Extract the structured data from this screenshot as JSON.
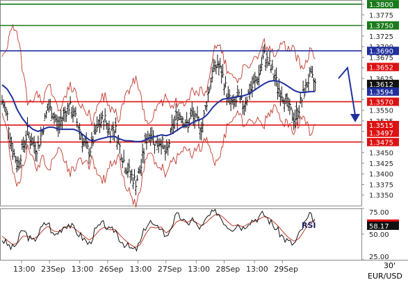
{
  "chart_data": {
    "type": "line",
    "symbol": "EUR/USD",
    "timeframe": "30'",
    "price_ylim": [
      1.3325,
      1.381
    ],
    "price_ticks": [
      "1.3350",
      "1.3375",
      "1.3400",
      "1.3425",
      "1.3450",
      "1.3475",
      "1.3500",
      "1.3525",
      "1.3550",
      "1.3575",
      "1.3600",
      "1.3625",
      "1.3650",
      "1.3675",
      "1.3700",
      "1.3725",
      "1.3750",
      "1.3775",
      "1.3800"
    ],
    "x_labels": [
      "13:00",
      "23Sep",
      "13:00",
      "26Sep",
      "13:00",
      "27Sep",
      "13:00",
      "28Sep",
      "13:00",
      "29Sep"
    ],
    "x_label_slots": [
      12,
      36,
      62,
      86,
      112,
      136,
      162,
      186,
      212,
      236
    ],
    "slot_count": 270,
    "levels": [
      {
        "value": 1.38,
        "label": "1.3800",
        "color": "#1a7a1a",
        "bg": "#1a7a1a"
      },
      {
        "value": 1.375,
        "label": "1.3750",
        "color": "#1a7a1a",
        "bg": "#1a7a1a"
      },
      {
        "value": 1.369,
        "label": "1.3690",
        "color": "#1f2f9e",
        "bg": "#1f2f9e"
      },
      {
        "value": 1.357,
        "label": "1.3570",
        "color": "#dd1111",
        "bg": "#dd1111"
      },
      {
        "value": 1.3515,
        "label": "1.3515",
        "color": "#dd1111",
        "bg": "#dd1111"
      },
      {
        "value": 1.3475,
        "label": "1.3475",
        "color": "#dd1111",
        "bg": "#dd1111"
      }
    ],
    "markers": [
      {
        "value": 1.3652,
        "label": "1.3652",
        "bg": "#dd1111"
      },
      {
        "value": 1.3612,
        "label": "1.3612",
        "bg": "#111111"
      },
      {
        "value": 1.3594,
        "label": "1.3594",
        "bg": "#1f2f9e"
      },
      {
        "value": 1.3497,
        "label": "1.3497",
        "bg": "#dd1111"
      }
    ],
    "price_series": [
      1.357,
      1.354,
      1.346,
      1.342,
      1.346,
      1.35,
      1.347,
      1.346,
      1.351,
      1.356,
      1.354,
      1.351,
      1.354,
      1.356,
      1.354,
      1.351,
      1.347,
      1.345,
      1.349,
      1.352,
      1.353,
      1.35,
      1.351,
      1.346,
      1.342,
      1.34,
      1.338,
      1.341,
      1.348,
      1.35,
      1.347,
      1.348,
      1.344,
      1.35,
      1.354,
      1.354,
      1.351,
      1.354,
      1.352,
      1.351,
      1.358,
      1.364,
      1.366,
      1.363,
      1.358,
      1.356,
      1.358,
      1.356,
      1.359,
      1.361,
      1.363,
      1.368,
      1.366,
      1.363,
      1.36,
      1.358,
      1.355,
      1.353,
      1.356,
      1.36,
      1.363,
      1.3612
    ],
    "ma_series": [
      1.361,
      1.36,
      1.358,
      1.355,
      1.353,
      1.3515,
      1.3505,
      1.35,
      1.3505,
      1.351,
      1.351,
      1.3505,
      1.3505,
      1.3505,
      1.3505,
      1.35,
      1.349,
      1.348,
      1.3478,
      1.3482,
      1.3485,
      1.3488,
      1.3488,
      1.3482,
      1.3478,
      1.3478,
      1.3476,
      1.3476,
      1.348,
      1.3486,
      1.3488,
      1.3492,
      1.349,
      1.3494,
      1.3502,
      1.351,
      1.3514,
      1.352,
      1.3526,
      1.353,
      1.354,
      1.3556,
      1.3568,
      1.3576,
      1.3578,
      1.358,
      1.3582,
      1.3584,
      1.3588,
      1.3596,
      1.3604,
      1.3612,
      1.3618,
      1.362,
      1.3618,
      1.3612,
      1.3604,
      1.3596,
      1.3592,
      1.3592,
      1.3594,
      1.3594
    ],
    "forecast": {
      "from": 1.365,
      "to": 1.3525
    },
    "rsi": {
      "label": "RSI",
      "ylim": [
        25,
        75
      ],
      "ticks": [
        "25.00",
        "50.00",
        "75.00"
      ],
      "values": [
        45,
        40,
        36,
        42,
        55,
        48,
        42,
        50,
        58,
        62,
        48,
        52,
        58,
        60,
        55,
        50,
        45,
        40,
        52,
        58,
        60,
        52,
        55,
        45,
        40,
        36,
        34,
        42,
        58,
        62,
        55,
        58,
        46,
        58,
        68,
        66,
        58,
        66,
        58,
        56,
        66,
        70,
        72,
        64,
        58,
        56,
        60,
        56,
        62,
        64,
        66,
        70,
        64,
        58,
        52,
        46,
        42,
        40,
        50,
        60,
        68,
        64
      ],
      "signal": [
        48,
        44,
        40,
        41,
        48,
        48,
        45,
        48,
        54,
        58,
        53,
        52,
        56,
        58,
        56,
        52,
        48,
        44,
        48,
        54,
        57,
        54,
        55,
        49,
        44,
        40,
        37,
        40,
        50,
        57,
        56,
        57,
        51,
        55,
        62,
        64,
        61,
        64,
        61,
        58,
        62,
        67,
        70,
        67,
        62,
        58,
        59,
        57,
        60,
        62,
        64,
        67,
        66,
        62,
        57,
        51,
        46,
        43,
        46,
        54,
        62,
        63
      ],
      "markers": [
        {
          "value": 60.2,
          "label": "60.20",
          "bg": "#dd1111"
        },
        {
          "value": 58.17,
          "label": "58.17",
          "bg": "#111111"
        }
      ]
    }
  }
}
